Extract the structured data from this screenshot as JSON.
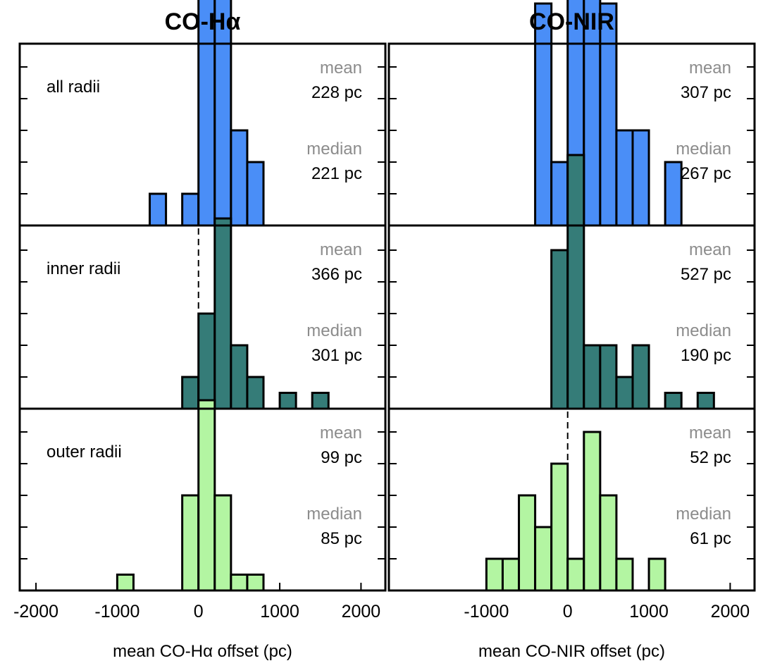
{
  "chart_data": [
    {
      "type": "bar",
      "panel": "CO-Hα / all radii",
      "column_title": "CO-Hα",
      "row_label": "all radii",
      "color": "#4a8ef7",
      "bin_width": 200,
      "bin_centers": [
        -500,
        -100,
        100,
        300,
        500,
        700
      ],
      "counts": [
        1,
        1,
        8,
        9,
        3,
        2
      ],
      "xlim": [
        -2200,
        2300
      ],
      "mean_label": "mean",
      "mean_value": "228 pc",
      "median_label": "median",
      "median_value": "221 pc",
      "xlabel": ""
    },
    {
      "type": "bar",
      "panel": "CO-NIR / all radii",
      "column_title": "CO-NIR",
      "row_label": "",
      "color": "#4a8ef7",
      "bin_width": 200,
      "bin_centers": [
        -300,
        -100,
        100,
        300,
        500,
        700,
        900,
        1300
      ],
      "counts": [
        7,
        2,
        9,
        9,
        7,
        3,
        3,
        2
      ],
      "xlim": [
        -2200,
        2300
      ],
      "mean_label": "mean",
      "mean_value": "307 pc",
      "median_label": "median",
      "median_value": "267 pc",
      "xlabel": ""
    },
    {
      "type": "bar",
      "panel": "CO-Hα / inner radii",
      "row_label": "inner radii",
      "color": "#357c78",
      "bin_width": 200,
      "bin_centers": [
        -100,
        100,
        300,
        500,
        700,
        1100,
        1500
      ],
      "counts": [
        1,
        3,
        6,
        2,
        1,
        0.5,
        0.5
      ],
      "xlim": [
        -2200,
        2300
      ],
      "mean_label": "mean",
      "mean_value": "366 pc",
      "median_label": "median",
      "median_value": "301 pc",
      "xlabel": ""
    },
    {
      "type": "bar",
      "panel": "CO-NIR / inner radii",
      "row_label": "",
      "color": "#357c78",
      "bin_width": 200,
      "bin_centers": [
        -100,
        100,
        300,
        500,
        700,
        900,
        1300,
        1700
      ],
      "counts": [
        5,
        8,
        2,
        2,
        1,
        2,
        0.5,
        0.5
      ],
      "xlim": [
        -2200,
        2300
      ],
      "mean_label": "mean",
      "mean_value": "527 pc",
      "median_label": "median",
      "median_value": "190 pc",
      "xlabel": ""
    },
    {
      "type": "bar",
      "panel": "CO-Hα / outer radii",
      "row_label": "outer radii",
      "color": "#b3f5a2",
      "bin_width": 200,
      "bin_centers": [
        -900,
        -100,
        100,
        300,
        500,
        700
      ],
      "counts": [
        0.5,
        3,
        6,
        3,
        0.5,
        0.5
      ],
      "xlim": [
        -2200,
        2300
      ],
      "mean_label": "mean",
      "mean_value": "99 pc",
      "median_label": "median",
      "median_value": "85 pc",
      "xlabel": "mean CO-Hα offset (pc)",
      "xticks": [
        -2000,
        -1000,
        0,
        1000,
        2000
      ]
    },
    {
      "type": "bar",
      "panel": "CO-NIR / outer radii",
      "row_label": "",
      "color": "#b3f5a2",
      "bin_width": 200,
      "bin_centers": [
        -900,
        -700,
        -500,
        -300,
        -100,
        100,
        300,
        500,
        700,
        1100
      ],
      "counts": [
        1,
        1,
        3,
        2,
        4,
        1,
        5,
        3,
        1,
        1
      ],
      "xlim": [
        -2200,
        2300
      ],
      "mean_label": "mean",
      "mean_value": "52 pc",
      "median_label": "median",
      "median_value": "61 pc",
      "xlabel": "mean CO-NIR offset (pc)",
      "xticks": [
        -1000,
        0,
        1000,
        2000
      ]
    }
  ]
}
